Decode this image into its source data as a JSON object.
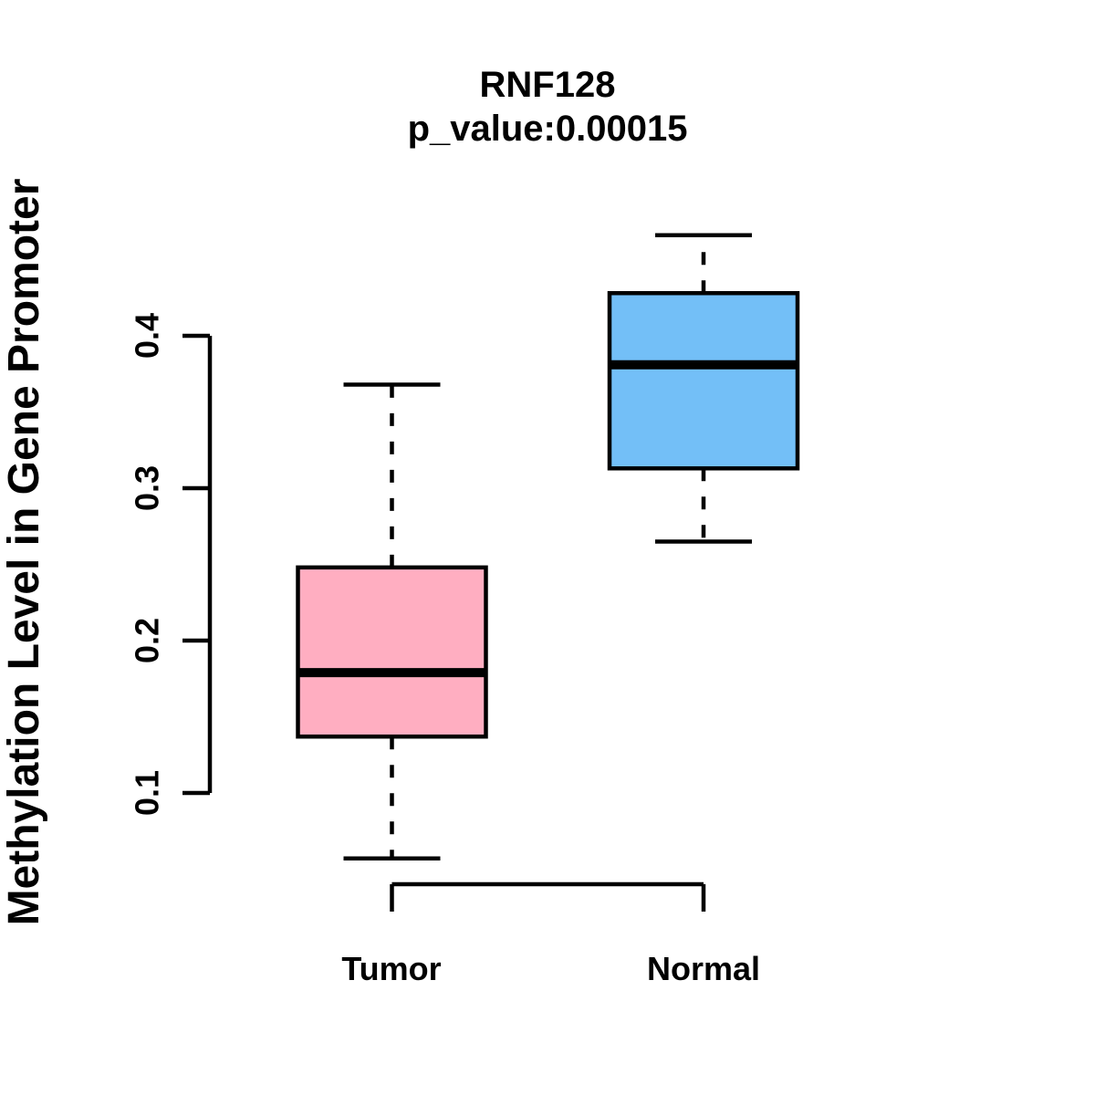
{
  "page": {
    "background_color": "#ffffff",
    "text_color": "#000000"
  },
  "chart_data": {
    "type": "boxplot",
    "title": "RNF128",
    "subtitle": "p_value:0.00015",
    "p_value": 0.00015,
    "ylabel": "Methylation Level in Gene Promoter",
    "xlabel": "",
    "grid": false,
    "legend": "none",
    "ylim": [
      0.041,
      0.482
    ],
    "yticks": [
      {
        "label": "0.1",
        "value": 0.1
      },
      {
        "label": "0.2",
        "value": 0.2
      },
      {
        "label": "0.3",
        "value": 0.3
      },
      {
        "label": "0.4",
        "value": 0.4
      }
    ],
    "categories": [
      "Tumor",
      "Normal"
    ],
    "series": [
      {
        "name": "Tumor",
        "fill_color": "#FFAEC1",
        "stroke_color": "#000000",
        "whisker_low": 0.057,
        "q1": 0.137,
        "median": 0.179,
        "q3": 0.248,
        "whisker_high": 0.368
      },
      {
        "name": "Normal",
        "fill_color": "#73BFF7",
        "stroke_color": "#000000",
        "whisker_low": 0.265,
        "q1": 0.313,
        "median": 0.381,
        "q3": 0.428,
        "whisker_high": 0.466
      }
    ]
  }
}
